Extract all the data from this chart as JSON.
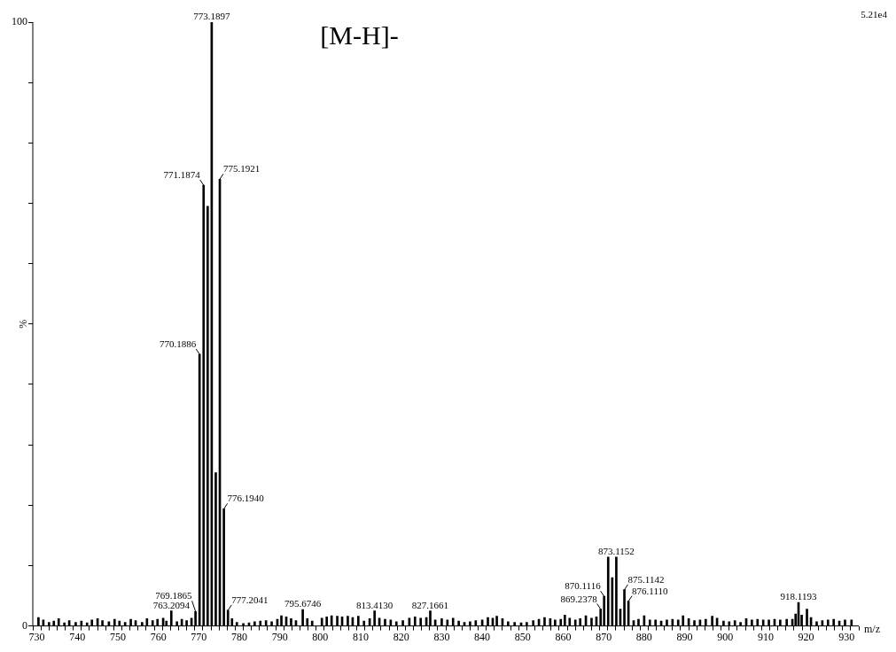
{
  "chart_data": {
    "type": "bar",
    "title": "[M-H]-",
    "xlabel": "m/z",
    "ylabel": "%",
    "x": [
      730.4,
      731.6,
      733.0,
      734.2,
      735.4,
      736.8,
      738.0,
      739.6,
      741.0,
      742.4,
      743.6,
      745.0,
      746.2,
      747.8,
      749.2,
      750.4,
      751.8,
      753.2,
      754.4,
      756.0,
      757.2,
      758.6,
      759.8,
      761.2,
      762.0,
      763.2094,
      764.6,
      765.8,
      767.0,
      768.2,
      769.1865,
      770.1886,
      771.1874,
      772.19,
      773.1897,
      774.19,
      775.1921,
      776.194,
      777.2041,
      778.2,
      779.4,
      781.0,
      782.4,
      783.8,
      785.2,
      786.6,
      788.0,
      789.4,
      790.4,
      791.6,
      792.8,
      794.0,
      795.6746,
      796.8,
      798.0,
      800.4,
      801.6,
      802.8,
      804.2,
      805.4,
      806.8,
      808.0,
      809.4,
      810.8,
      812.2,
      813.413,
      814.6,
      816.0,
      817.4,
      818.8,
      820.4,
      822.0,
      823.4,
      824.8,
      826.2,
      827.1661,
      828.4,
      830.0,
      831.4,
      832.8,
      834.2,
      835.6,
      837.0,
      838.4,
      840.0,
      841.4,
      842.6,
      843.6,
      845.0,
      846.4,
      848.0,
      849.6,
      851.0,
      852.6,
      854.0,
      855.4,
      856.8,
      858.0,
      859.4,
      860.4,
      861.6,
      863.0,
      864.2,
      865.6,
      867.0,
      868.2,
      869.2378,
      870.1116,
      871.11,
      872.11,
      873.1152,
      874.11,
      875.1142,
      876.111,
      877.4,
      878.6,
      880.0,
      881.4,
      882.8,
      884.2,
      885.6,
      887.0,
      888.4,
      889.6,
      891.0,
      892.4,
      893.8,
      895.2,
      896.8,
      898.0,
      899.6,
      901.0,
      902.4,
      903.8,
      905.2,
      906.6,
      908.0,
      909.4,
      910.8,
      912.2,
      913.6,
      915.2,
      916.6,
      917.4,
      918.1193,
      918.9,
      920.2,
      921.2,
      922.6,
      924.0,
      925.4,
      926.8,
      928.2,
      929.6,
      931.2
    ],
    "values": [
      1.4,
      1.0,
      0.6,
      0.8,
      1.2,
      0.5,
      0.9,
      0.6,
      0.8,
      0.5,
      1.0,
      1.2,
      0.9,
      0.7,
      1.1,
      0.8,
      0.6,
      1.1,
      0.9,
      0.6,
      1.2,
      0.9,
      1.1,
      1.3,
      0.8,
      2.5,
      0.7,
      1.1,
      0.9,
      1.3,
      2.4,
      45,
      73,
      69.5,
      100,
      25.4,
      74,
      19.4,
      2.6,
      1.2,
      0.6,
      0.4,
      0.5,
      0.7,
      0.8,
      0.9,
      0.7,
      1.1,
      1.7,
      1.5,
      1.2,
      0.9,
      2.7,
      1.2,
      0.8,
      1.3,
      1.5,
      1.7,
      1.6,
      1.5,
      1.6,
      1.4,
      1.6,
      0.8,
      1.2,
      2.5,
      1.3,
      1.1,
      1.0,
      0.7,
      0.9,
      1.3,
      1.5,
      1.3,
      1.4,
      2.5,
      1.0,
      1.2,
      1.0,
      1.3,
      0.8,
      0.6,
      0.7,
      0.9,
      1.0,
      1.4,
      1.3,
      1.6,
      1.2,
      0.7,
      0.6,
      0.5,
      0.6,
      0.9,
      1.1,
      1.4,
      1.2,
      1.0,
      1.1,
      1.8,
      1.3,
      1.0,
      1.2,
      1.7,
      1.3,
      1.5,
      2.8,
      4.9,
      11.4,
      8,
      11.4,
      2.8,
      6.0,
      4.1,
      0.9,
      1.1,
      1.7,
      1.0,
      1.0,
      0.8,
      1.0,
      1.1,
      1.0,
      1.7,
      1.2,
      0.9,
      1.0,
      1.1,
      1.6,
      1.3,
      0.8,
      0.7,
      0.9,
      0.6,
      1.2,
      1.0,
      1.1,
      1.0,
      1.0,
      1.1,
      1.0,
      1.1,
      1.1,
      2.0,
      3.9,
      1.8,
      2.8,
      1.4,
      0.7,
      0.9,
      1.0,
      1.1,
      0.8,
      1.0,
      1.0
    ],
    "color": "#000000",
    "xlim": [
      729,
      933
    ],
    "xticks": [
      730,
      {
        "value": 732,
        "label": null
      },
      {
        "value": 734,
        "label": null
      },
      {
        "value": 736,
        "label": null
      },
      {
        "value": 738,
        "label": null
      },
      740,
      {
        "value": 742,
        "label": null
      },
      {
        "value": 744,
        "label": null
      },
      {
        "value": 746,
        "label": null
      },
      {
        "value": 748,
        "label": null
      },
      750,
      {
        "value": 752,
        "label": null
      },
      {
        "value": 754,
        "label": null
      },
      {
        "value": 756,
        "label": null
      },
      {
        "value": 758,
        "label": null
      },
      760,
      {
        "value": 762,
        "label": null
      },
      {
        "value": 764,
        "label": null
      },
      {
        "value": 766,
        "label": null
      },
      {
        "value": 768,
        "label": null
      },
      770,
      {
        "value": 772,
        "label": null
      },
      {
        "value": 774,
        "label": null
      },
      {
        "value": 776,
        "label": null
      },
      {
        "value": 778,
        "label": null
      },
      780,
      {
        "value": 782,
        "label": null
      },
      {
        "value": 784,
        "label": null
      },
      {
        "value": 786,
        "label": null
      },
      {
        "value": 788,
        "label": null
      },
      790,
      {
        "value": 792,
        "label": null
      },
      {
        "value": 794,
        "label": null
      },
      {
        "value": 796,
        "label": null
      },
      {
        "value": 798,
        "label": null
      },
      800,
      {
        "value": 802,
        "label": null
      },
      {
        "value": 804,
        "label": null
      },
      {
        "value": 806,
        "label": null
      },
      {
        "value": 808,
        "label": null
      },
      810,
      {
        "value": 812,
        "label": null
      },
      {
        "value": 814,
        "label": null
      },
      {
        "value": 816,
        "label": null
      },
      {
        "value": 818,
        "label": null
      },
      820,
      {
        "value": 822,
        "label": null
      },
      {
        "value": 824,
        "label": null
      },
      {
        "value": 826,
        "label": null
      },
      {
        "value": 828,
        "label": null
      },
      830,
      {
        "value": 832,
        "label": null
      },
      {
        "value": 834,
        "label": null
      },
      {
        "value": 836,
        "label": null
      },
      {
        "value": 838,
        "label": null
      },
      840,
      {
        "value": 842,
        "label": null
      },
      {
        "value": 844,
        "label": null
      },
      {
        "value": 846,
        "label": null
      },
      {
        "value": 848,
        "label": null
      },
      850,
      {
        "value": 852,
        "label": null
      },
      {
        "value": 854,
        "label": null
      },
      {
        "value": 856,
        "label": null
      },
      {
        "value": 858,
        "label": null
      },
      860,
      {
        "value": 862,
        "label": null
      },
      {
        "value": 864,
        "label": null
      },
      {
        "value": 866,
        "label": null
      },
      {
        "value": 868,
        "label": null
      },
      870,
      {
        "value": 872,
        "label": null
      },
      {
        "value": 874,
        "label": null
      },
      {
        "value": 876,
        "label": null
      },
      {
        "value": 878,
        "label": null
      },
      880,
      {
        "value": 882,
        "label": null
      },
      {
        "value": 884,
        "label": null
      },
      {
        "value": 886,
        "label": null
      },
      {
        "value": 888,
        "label": null
      },
      890,
      {
        "value": 892,
        "label": null
      },
      {
        "value": 894,
        "label": null
      },
      {
        "value": 896,
        "label": null
      },
      {
        "value": 898,
        "label": null
      },
      900,
      {
        "value": 902,
        "label": null
      },
      {
        "value": 904,
        "label": null
      },
      {
        "value": 906,
        "label": null
      },
      {
        "value": 908,
        "label": null
      },
      910,
      {
        "value": 912,
        "label": null
      },
      {
        "value": 914,
        "label": null
      },
      {
        "value": 916,
        "label": null
      },
      {
        "value": 918,
        "label": null
      },
      920,
      {
        "value": 922,
        "label": null
      },
      {
        "value": 924,
        "label": null
      },
      {
        "value": 926,
        "label": null
      },
      {
        "value": 928,
        "label": null
      },
      930,
      {
        "value": 932,
        "label": null
      }
    ],
    "ylim": [
      0,
      100
    ],
    "yticks": [
      0,
      {
        "value": 10,
        "label": null
      },
      {
        "value": 20,
        "label": null
      },
      {
        "value": 30,
        "label": null
      },
      {
        "value": 40,
        "label": null
      },
      {
        "value": 50,
        "label": null
      },
      {
        "value": 60,
        "label": null
      },
      {
        "value": 70,
        "label": null
      },
      {
        "value": 80,
        "label": null
      },
      {
        "value": 90,
        "label": null
      },
      100
    ],
    "annotations": [
      "5.21e4",
      {
        "text": "763.2094",
        "x": 763.2094,
        "y": 2.5
      },
      {
        "text": "769.1865",
        "x": 769.1865,
        "y": 2.4
      },
      {
        "text": "770.1886",
        "x": 770.1886,
        "y": 45
      },
      {
        "text": "771.1874",
        "x": 771.1874,
        "y": 73
      },
      {
        "text": "773.1897",
        "x": 773.1897,
        "y": 100
      },
      {
        "text": "775.1921",
        "x": 775.1921,
        "y": 74
      },
      {
        "text": "776.1940",
        "x": 776.194,
        "y": 19.4
      },
      {
        "text": "777.2041",
        "x": 777.2041,
        "y": 2.6
      },
      {
        "text": "795.6746",
        "x": 795.6746,
        "y": 2.7
      },
      {
        "text": "813.4130",
        "x": 813.413,
        "y": 2.5
      },
      {
        "text": "827.1661",
        "x": 827.1661,
        "y": 2.5
      },
      {
        "text": "869.2378",
        "x": 869.2378,
        "y": 2.8
      },
      {
        "text": "870.1116",
        "x": 870.1116,
        "y": 4.9
      },
      {
        "text": "873.1152",
        "x": 873.1152,
        "y": 11.4
      },
      {
        "text": "875.1142",
        "x": 875.1142,
        "y": 6.0
      },
      {
        "text": "876.1110",
        "x": 876.111,
        "y": 4.1
      },
      {
        "text": "918.1193",
        "x": 918.1193,
        "y": 3.9
      }
    ]
  }
}
